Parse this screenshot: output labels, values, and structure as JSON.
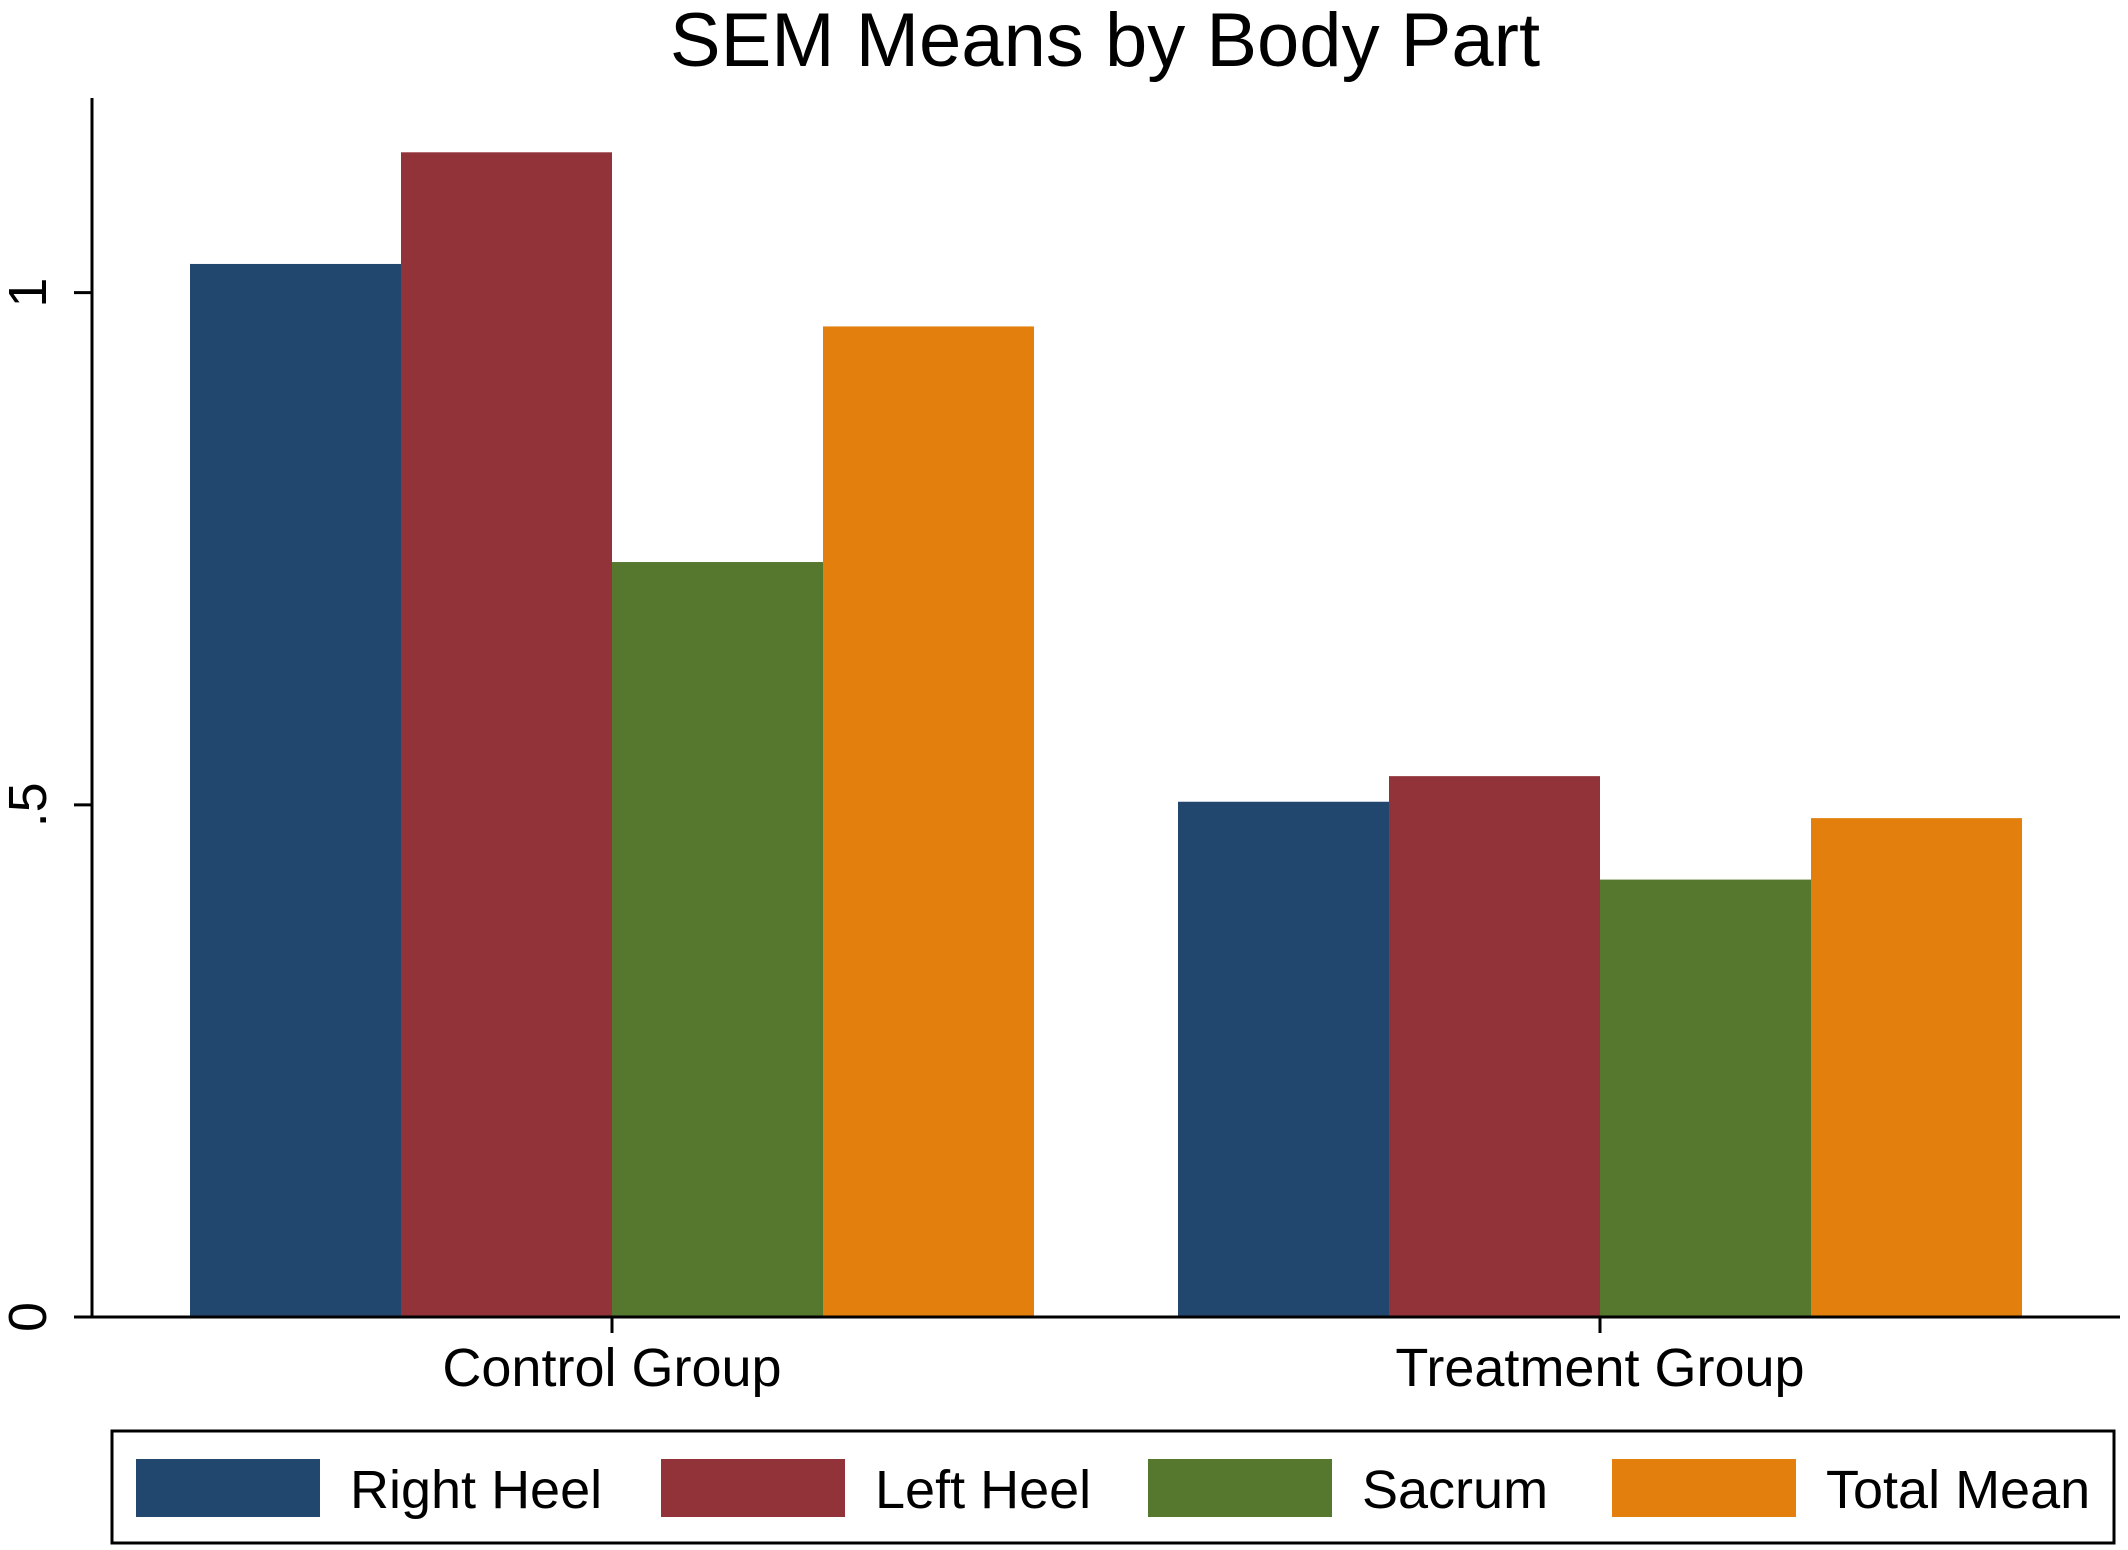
{
  "chart_data": {
    "type": "bar",
    "title": "SEM Means by Body Part",
    "xlabel": "",
    "ylabel": "",
    "categories": [
      "Control Group",
      "Treatment Group"
    ],
    "series": [
      {
        "name": "Right Heel",
        "color": "#22476e",
        "values": [
          1.028,
          0.503
        ]
      },
      {
        "name": "Left Heel",
        "color": "#92333a",
        "values": [
          1.137,
          0.528
        ]
      },
      {
        "name": "Sacrum",
        "color": "#55772e",
        "values": [
          0.737,
          0.427
        ]
      },
      {
        "name": "Total Mean",
        "color": "#e3800d",
        "values": [
          0.967,
          0.487
        ]
      }
    ],
    "ylim": [
      0,
      1.19
    ],
    "yticks": [
      {
        "value": 0,
        "label": "0"
      },
      {
        "value": 0.5,
        "label": ".5"
      },
      {
        "value": 1,
        "label": "1"
      }
    ],
    "grid": false,
    "legend_position": "bottom"
  }
}
